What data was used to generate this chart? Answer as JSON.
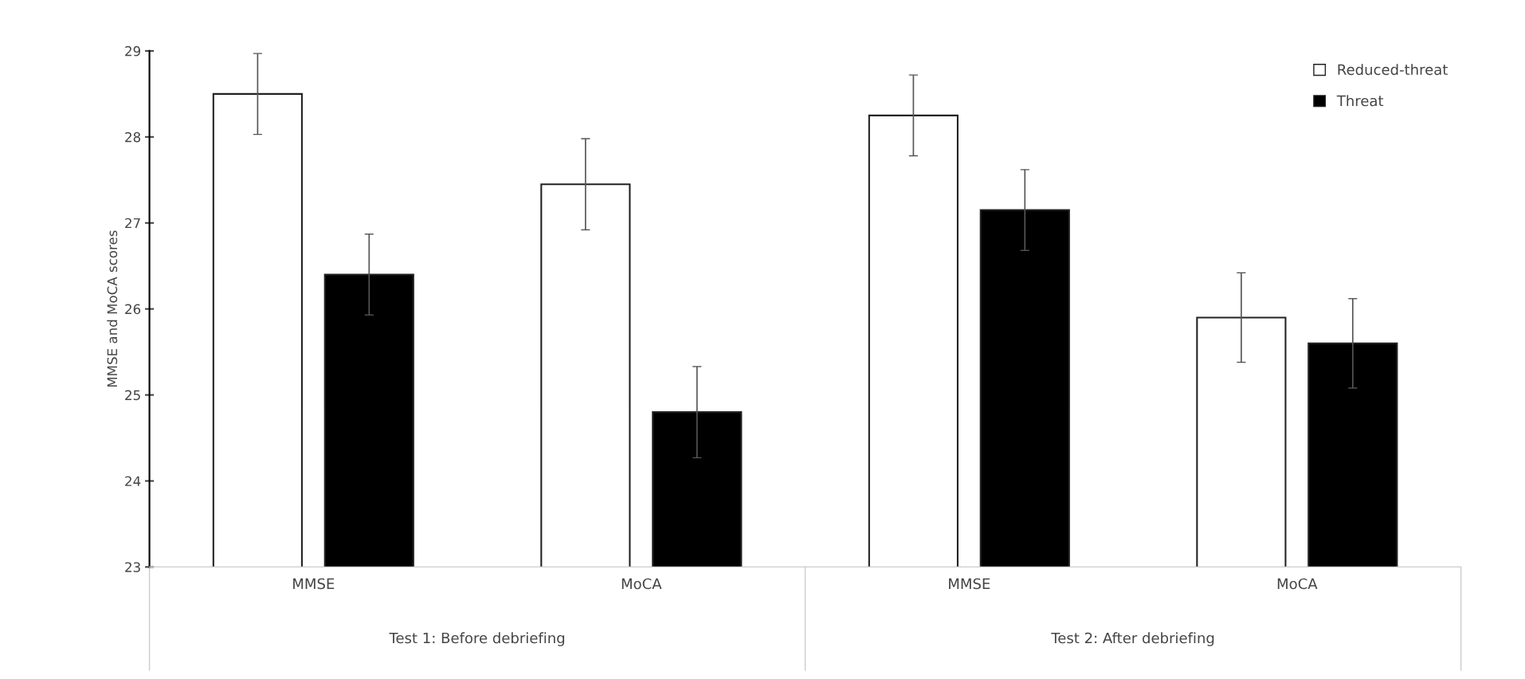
{
  "chart_data": {
    "type": "bar",
    "ylabel": "MMSE and MoCA scores",
    "categories": [
      "MMSE",
      "MoCA",
      "MMSE",
      "MoCA"
    ],
    "series": [
      {
        "name": "Reduced-threat",
        "color": "#ffffff",
        "values": [
          28.5,
          27.45,
          28.25,
          25.9
        ],
        "errors": [
          0.47,
          0.53,
          0.47,
          0.52
        ]
      },
      {
        "name": "Threat",
        "color": "#000000",
        "values": [
          26.4,
          24.8,
          27.15,
          25.6
        ],
        "errors": [
          0.47,
          0.53,
          0.47,
          0.52
        ]
      }
    ],
    "annotations": [
      "Test 1: Before debriefing",
      "Test 2: After debriefing"
    ],
    "ylim": [
      23,
      29
    ],
    "yticks": [
      23,
      24,
      25,
      26,
      27,
      28,
      29
    ],
    "grid": false,
    "legend": "top right"
  }
}
